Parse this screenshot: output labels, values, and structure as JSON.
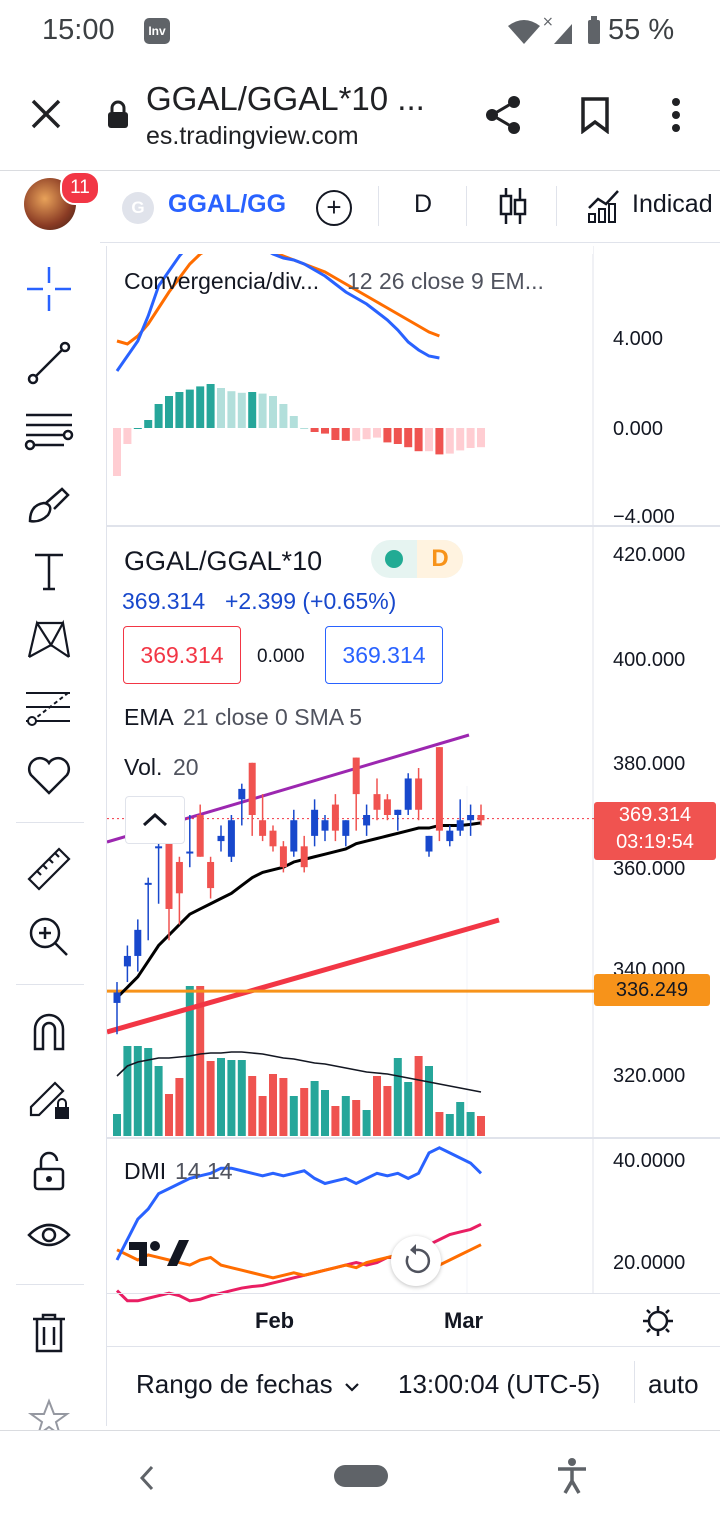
{
  "status": {
    "time": "15:00",
    "app_icon": "Inv",
    "battery": "55 %"
  },
  "browser": {
    "title": "GGAL/GGAL*10 ...",
    "url": "es.tradingview.com"
  },
  "toolbar": {
    "notifications": "11",
    "symbol_initial": "G",
    "symbol": "GGAL/GG",
    "interval": "D",
    "indicators": "Indicad"
  },
  "macd": {
    "label": "Convergencia/div...",
    "params": "12 26 close 9 EM...",
    "ticks": [
      "4.000",
      "0.000",
      "−4.000"
    ]
  },
  "main": {
    "symbol": "GGAL/GGAL*10",
    "badge": "D",
    "price": "369.314",
    "change": "+2.399 (+0.65%)",
    "sell": "369.314",
    "spread": "0.000",
    "buy": "369.314",
    "ema_name": "EMA",
    "ema_params": "21 close 0 SMA 5",
    "vol_name": "Vol.",
    "vol_params": "20",
    "ticks": [
      "420.000",
      "400.000",
      "380.000",
      "360.000",
      "340.000",
      "320.000"
    ],
    "last_price_label": "369.314",
    "countdown": "03:19:54",
    "hline_label": "336.249"
  },
  "dmi": {
    "name": "DMI",
    "params": "14 14",
    "ticks": [
      "40.0000",
      "20.0000"
    ]
  },
  "time_axis": {
    "labels": [
      "Feb",
      "Mar"
    ]
  },
  "bottom": {
    "range": "Rango de fechas",
    "clock": "13:00:04 (UTC-5)",
    "auto": "auto"
  },
  "colors": {
    "up": "#26a69a",
    "down": "#ef5350",
    "blue": "#2962ff",
    "accent": "#f7931a"
  },
  "chart_data": {
    "type": "candlestick",
    "symbol": "GGAL/GGAL*10",
    "ylim": [
      310,
      425
    ],
    "candles": [
      {
        "o": 334,
        "h": 338,
        "l": 328,
        "c": 336
      },
      {
        "o": 341,
        "h": 345,
        "l": 338,
        "c": 343
      },
      {
        "o": 343,
        "h": 350,
        "l": 340,
        "c": 348
      },
      {
        "o": 357,
        "h": 358,
        "l": 346,
        "c": 357
      },
      {
        "o": 364,
        "h": 366,
        "l": 353,
        "c": 364
      },
      {
        "o": 366,
        "h": 368,
        "l": 346,
        "c": 352
      },
      {
        "o": 361,
        "h": 362,
        "l": 349,
        "c": 355
      },
      {
        "o": 363,
        "h": 370,
        "l": 360,
        "c": 363
      },
      {
        "o": 370,
        "h": 372,
        "l": 362,
        "c": 362
      },
      {
        "o": 361,
        "h": 362,
        "l": 354,
        "c": 356
      },
      {
        "o": 365,
        "h": 368,
        "l": 363,
        "c": 366
      },
      {
        "o": 362,
        "h": 370,
        "l": 361,
        "c": 369
      },
      {
        "o": 373,
        "h": 376,
        "l": 368,
        "c": 375
      },
      {
        "o": 380,
        "h": 380,
        "l": 366,
        "c": 370
      },
      {
        "o": 369,
        "h": 374,
        "l": 365,
        "c": 366
      },
      {
        "o": 367,
        "h": 368,
        "l": 363,
        "c": 364
      },
      {
        "o": 364,
        "h": 365,
        "l": 359,
        "c": 360
      },
      {
        "o": 363,
        "h": 371,
        "l": 362,
        "c": 369
      },
      {
        "o": 364,
        "h": 366,
        "l": 359,
        "c": 360
      },
      {
        "o": 366,
        "h": 373,
        "l": 364,
        "c": 371
      },
      {
        "o": 367,
        "h": 370,
        "l": 365,
        "c": 369
      },
      {
        "o": 372,
        "h": 374,
        "l": 365,
        "c": 367
      },
      {
        "o": 366,
        "h": 369,
        "l": 364,
        "c": 369
      },
      {
        "o": 381,
        "h": 381,
        "l": 367,
        "c": 374
      },
      {
        "o": 368,
        "h": 372,
        "l": 366,
        "c": 370
      },
      {
        "o": 374,
        "h": 377,
        "l": 369,
        "c": 371
      },
      {
        "o": 373,
        "h": 374,
        "l": 369,
        "c": 370
      },
      {
        "o": 370,
        "h": 371,
        "l": 367,
        "c": 371
      },
      {
        "o": 371,
        "h": 378,
        "l": 370,
        "c": 377
      },
      {
        "o": 377,
        "h": 379,
        "l": 369,
        "c": 371
      },
      {
        "o": 363,
        "h": 366,
        "l": 362,
        "c": 366
      },
      {
        "o": 383,
        "h": 383,
        "l": 365,
        "c": 367
      },
      {
        "o": 365,
        "h": 368,
        "l": 364,
        "c": 367
      },
      {
        "o": 367,
        "h": 373,
        "l": 366,
        "c": 369
      },
      {
        "o": 369,
        "h": 372,
        "l": 366,
        "c": 370
      },
      {
        "o": 370,
        "h": 372,
        "l": 368,
        "c": 369
      }
    ]
  }
}
